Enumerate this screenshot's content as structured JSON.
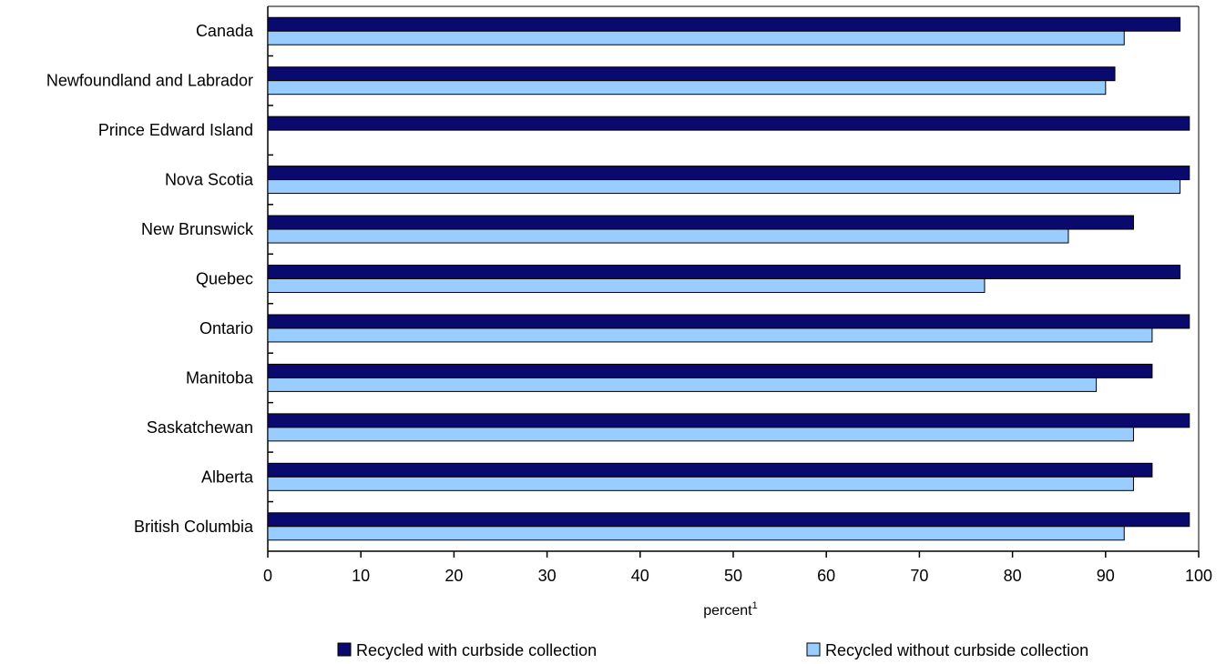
{
  "chart_data": {
    "type": "bar",
    "orientation": "horizontal",
    "categories": [
      "Canada",
      "Newfoundland and Labrador",
      "Prince Edward Island",
      "Nova Scotia",
      "New Brunswick",
      "Quebec",
      "Ontario",
      "Manitoba",
      "Saskatchewan",
      "Alberta",
      "British Columbia"
    ],
    "series": [
      {
        "name": "Recycled with curbside collection",
        "color": "#0a0a6e",
        "values": [
          98,
          91,
          99,
          99,
          93,
          98,
          99,
          95,
          99,
          95,
          99
        ]
      },
      {
        "name": "Recycled without curbside collection",
        "color": "#99ccff",
        "values": [
          92,
          90,
          null,
          98,
          86,
          77,
          95,
          89,
          93,
          93,
          92
        ]
      }
    ],
    "xlabel": "percent",
    "xlabel_footnote": "1",
    "xlim": [
      0,
      100
    ],
    "xticks": [
      "0",
      "10",
      "20",
      "30",
      "40",
      "50",
      "60",
      "70",
      "80",
      "90",
      "100"
    ],
    "grid": false,
    "legend_position": "bottom"
  }
}
